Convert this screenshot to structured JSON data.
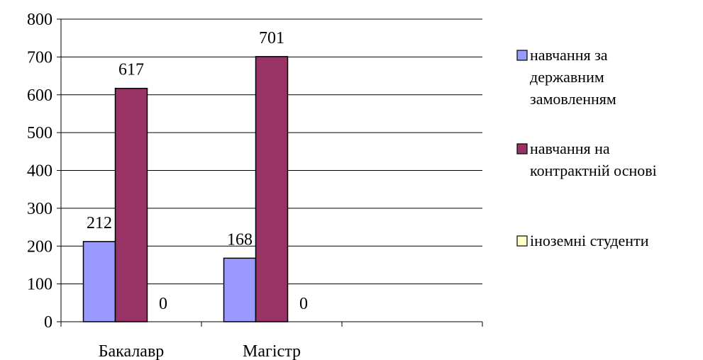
{
  "chart_data": {
    "type": "bar",
    "title": "",
    "xlabel": "",
    "ylabel": "",
    "categories": [
      "Бакалавр",
      "Магістр"
    ],
    "n_slots": 3,
    "ylim": [
      0,
      800
    ],
    "yticks": [
      0,
      100,
      200,
      300,
      400,
      500,
      600,
      700,
      800
    ],
    "grid": true,
    "legend_position": "right",
    "series": [
      {
        "name": "навчання за державним замовленням",
        "legend_lines": [
          "навчання за",
          "державним",
          "замовленням"
        ],
        "color": "#9999ff",
        "values": [
          212,
          168
        ],
        "labels": [
          "212",
          "168"
        ]
      },
      {
        "name": "навчання на контрактній основі",
        "legend_lines": [
          "навчання на",
          "контрактній основі"
        ],
        "color": "#993366",
        "values": [
          617,
          701
        ],
        "labels": [
          "617",
          "701"
        ]
      },
      {
        "name": "іноземні студенти",
        "legend_lines": [
          "іноземні студенти"
        ],
        "color": "#ffffcc",
        "values": [
          0,
          0
        ],
        "labels": [
          "0",
          "0"
        ]
      }
    ]
  }
}
